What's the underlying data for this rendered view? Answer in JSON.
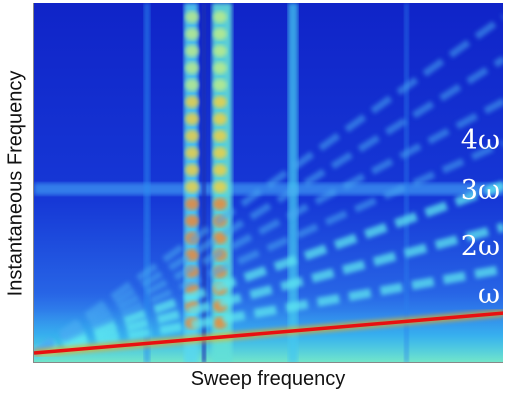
{
  "chart_data": {
    "type": "heatmap",
    "xlabel": "Sweep frequency",
    "ylabel": "Instantaneous Frequency",
    "colormap": [
      "#00008c",
      "#0000ff",
      "#0080ff",
      "#00ffff",
      "#80ff80",
      "#ffff00",
      "#ff8000",
      "#ff0000",
      "#8c0000"
    ],
    "background_color": "#1e2cc8",
    "series": [
      {
        "name": "ω",
        "harmonic": 1
      },
      {
        "name": "2ω",
        "harmonic": 2
      },
      {
        "name": "3ω",
        "harmonic": 3
      },
      {
        "name": "4ω",
        "harmonic": 4
      }
    ],
    "annotations": [
      "4ω",
      "3ω",
      "2ω",
      "ω"
    ],
    "x_ticks_labeled": false,
    "y_ticks_labeled": false
  }
}
